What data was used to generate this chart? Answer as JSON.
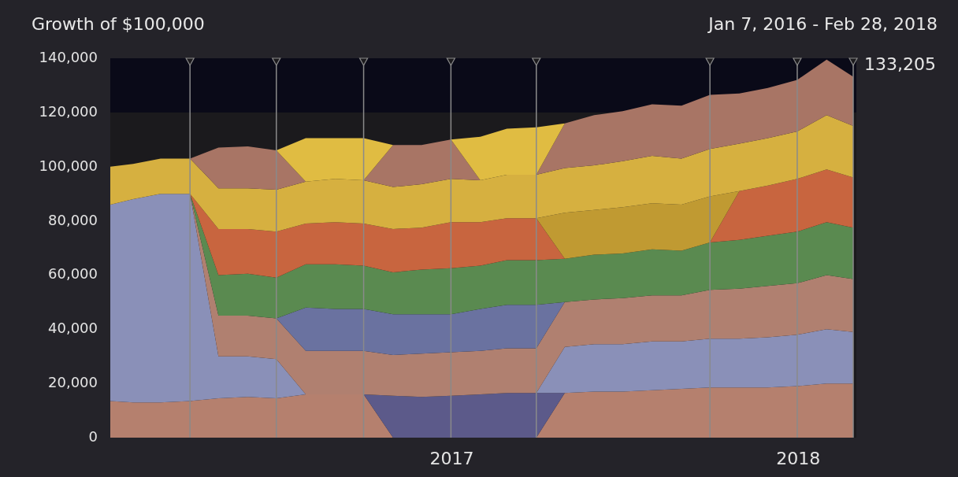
{
  "chart_data": {
    "type": "area",
    "stacked": true,
    "title": "Growth of $100,000",
    "subtitle": "Jan 7, 2016 - Feb 28, 2018",
    "x": [
      "2016-01-07",
      "2016-01-31",
      "2016-02-29",
      "2016-03-31",
      "2016-04-30",
      "2016-05-31",
      "2016-06-30",
      "2016-07-31",
      "2016-08-31",
      "2016-09-30",
      "2016-10-31",
      "2016-11-30",
      "2016-12-31",
      "2017-01-31",
      "2017-02-28",
      "2017-03-31",
      "2017-04-30",
      "2017-05-31",
      "2017-06-30",
      "2017-07-31",
      "2017-08-31",
      "2017-09-30",
      "2017-10-31",
      "2017-11-30",
      "2017-12-31",
      "2018-01-31",
      "2018-02-28"
    ],
    "series": [
      {
        "color": "#b5806e",
        "values": [
          13500,
          13000,
          13000,
          13500,
          14500,
          15000,
          14500,
          16000,
          16000,
          16000,
          0,
          null,
          null,
          null,
          null,
          0,
          16500,
          17000,
          17000,
          17500,
          18000,
          18500,
          18500,
          18500,
          19000,
          20000,
          20000
        ]
      },
      {
        "color": "#5c5a8a",
        "values": [
          null,
          null,
          null,
          null,
          null,
          null,
          null,
          null,
          null,
          0,
          15500,
          15000,
          15500,
          16000,
          16500,
          16500,
          0,
          null,
          null,
          null,
          null,
          null,
          null,
          null,
          null,
          null,
          null
        ]
      },
      {
        "color": "#8a90b8",
        "values": [
          72500,
          75000,
          77000,
          76500,
          15500,
          15000,
          14500,
          0,
          null,
          null,
          null,
          null,
          null,
          null,
          null,
          0,
          17000,
          17500,
          17500,
          18000,
          17500,
          18000,
          18000,
          18500,
          19000,
          20000,
          19000
        ]
      },
      {
        "color": "#b08070",
        "values": [
          null,
          null,
          null,
          0,
          15000,
          15000,
          15000,
          16000,
          16000,
          16000,
          15000,
          16000,
          16000,
          16000,
          16500,
          16500,
          16500,
          16500,
          17000,
          17000,
          17000,
          18000,
          18500,
          19000,
          19000,
          20000,
          19500
        ]
      },
      {
        "color": "#6a72a0",
        "values": [
          null,
          null,
          null,
          null,
          null,
          null,
          0,
          16000,
          15500,
          15500,
          15000,
          14500,
          14000,
          15500,
          16000,
          16000,
          0,
          null,
          null,
          null,
          null,
          null,
          null,
          null,
          null,
          null,
          null
        ]
      },
      {
        "color": "#5a8a50",
        "values": [
          null,
          null,
          null,
          0,
          15000,
          15500,
          15000,
          16000,
          16500,
          16000,
          15500,
          16500,
          17000,
          16000,
          16500,
          16500,
          16000,
          16500,
          16500,
          17000,
          16500,
          17500,
          18000,
          18500,
          19000,
          19500,
          19000
        ]
      },
      {
        "color": "#c8653f",
        "values": [
          null,
          null,
          null,
          0,
          17000,
          16500,
          17000,
          15000,
          15500,
          15500,
          16000,
          15500,
          17000,
          16000,
          15500,
          15500,
          0,
          null,
          null,
          null,
          null,
          0,
          18000,
          18500,
          19500,
          19500,
          18500
        ]
      },
      {
        "color": "#c09a32",
        "values": [
          null,
          null,
          null,
          null,
          null,
          null,
          null,
          null,
          null,
          null,
          null,
          null,
          null,
          null,
          null,
          0,
          17000,
          16500,
          17000,
          17000,
          17000,
          17000,
          0,
          null,
          null,
          null,
          null
        ]
      },
      {
        "color": "#d6b040",
        "values": [
          14000,
          13000,
          13000,
          13000,
          15000,
          15000,
          15500,
          15500,
          16000,
          16000,
          15500,
          16000,
          16000,
          15500,
          16000,
          16000,
          16500,
          16500,
          17000,
          17500,
          17000,
          17500,
          17500,
          17500,
          17500,
          20000,
          19000
        ]
      },
      {
        "color": "#a87565",
        "values": [
          null,
          null,
          null,
          0,
          15000,
          15500,
          14500,
          0,
          null,
          0,
          15500,
          14500,
          14500,
          0,
          null,
          0,
          16500,
          18500,
          18500,
          19000,
          19500,
          20000,
          18500,
          18500,
          19000,
          20500,
          18205
        ]
      },
      {
        "color": "#e0bc42",
        "values": [
          null,
          null,
          null,
          null,
          null,
          null,
          0,
          16000,
          15000,
          15500,
          0,
          null,
          0,
          16000,
          17000,
          17500,
          0,
          null,
          null,
          null,
          null,
          null,
          null,
          null,
          null,
          null,
          null
        ]
      }
    ],
    "xlim": [
      "2016-01-07",
      "2018-02-28"
    ],
    "xticks": [
      {
        "value": "2017-01-01",
        "label": "2017"
      },
      {
        "value": "2018-01-01",
        "label": "2018"
      }
    ],
    "ylim": [
      0,
      140000
    ],
    "yticks": [
      0,
      {
        "value": 20000,
        "label": "20,000"
      },
      {
        "value": 40000,
        "label": "40,000"
      },
      {
        "value": 60000,
        "label": "60,000"
      },
      {
        "value": 80000,
        "label": "80,000"
      },
      {
        "value": 100000,
        "label": "100,000"
      },
      {
        "value": 120000,
        "label": "120,000"
      },
      {
        "value": 140000,
        "label": "140,000"
      }
    ],
    "bands": [
      {
        "axis": "y",
        "from": 120000,
        "to": 140000,
        "color": "#0a0a18"
      }
    ],
    "ref_lines": [
      {
        "axis": "x",
        "value": "2016-03-31",
        "color": "#8a8a8a"
      },
      {
        "axis": "x",
        "value": "2016-06-30",
        "color": "#8a8a8a"
      },
      {
        "axis": "x",
        "value": "2016-09-30",
        "color": "#8a8a8a"
      },
      {
        "axis": "x",
        "value": "2016-12-31",
        "color": "#8a8a8a"
      },
      {
        "axis": "x",
        "value": "2017-03-31",
        "color": "#8a8a8a"
      },
      {
        "axis": "x",
        "value": "2017-09-30",
        "color": "#8a8a8a"
      },
      {
        "axis": "x",
        "value": "2017-12-31",
        "color": "#8a8a8a"
      }
    ],
    "annotations": [
      {
        "text": "133,205",
        "x": "2018-02-28",
        "y": 133205
      }
    ]
  }
}
